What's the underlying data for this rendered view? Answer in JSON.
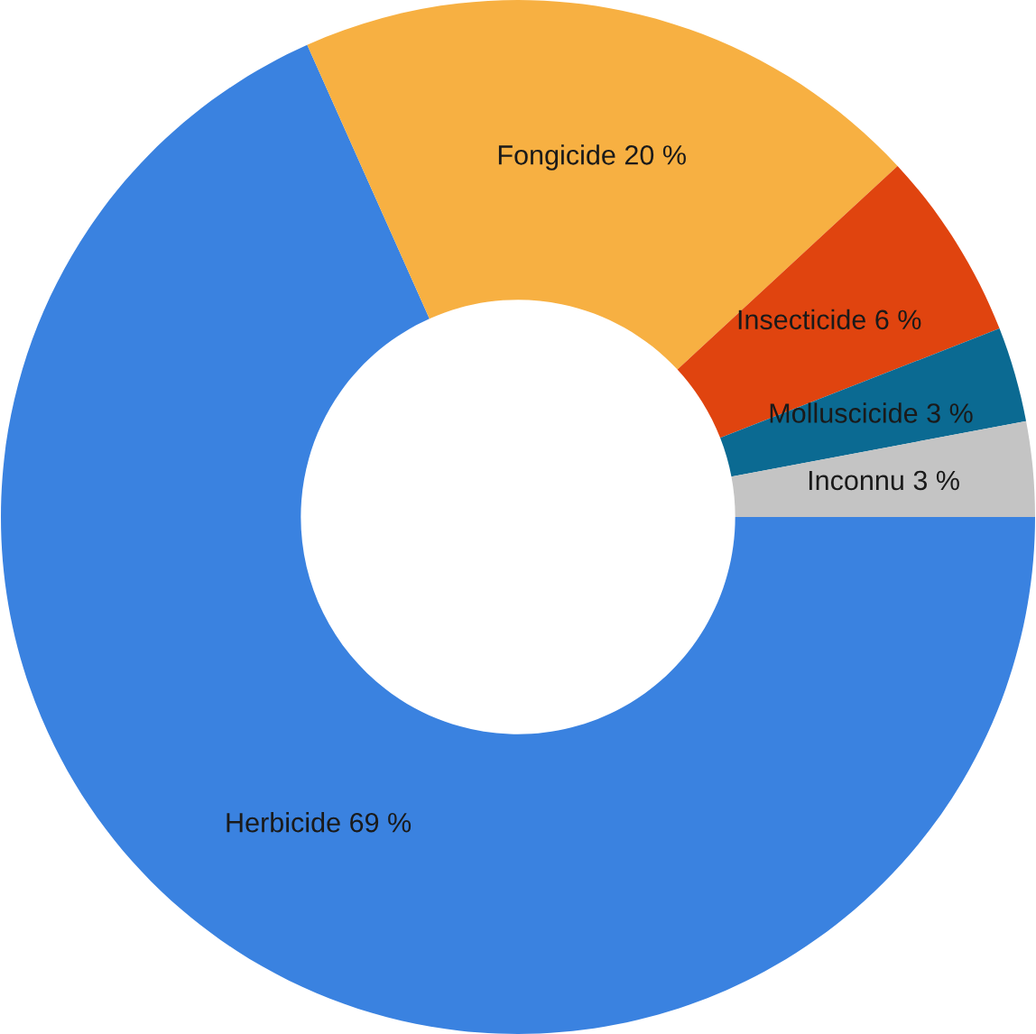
{
  "chart_data": {
    "type": "donut",
    "categories": [
      "Herbicide",
      "Fongicide",
      "Insecticide",
      "Molluscicide",
      "Inconnu"
    ],
    "values": [
      69,
      20,
      6,
      3,
      3
    ],
    "value_labels": [
      "69 %",
      "20 %",
      "6 %",
      "3 %",
      "3 %"
    ],
    "colors": [
      "#3a82e0",
      "#f7b042",
      "#e0440f",
      "#0b6a92",
      "#c4c4c4"
    ],
    "legend": false
  }
}
